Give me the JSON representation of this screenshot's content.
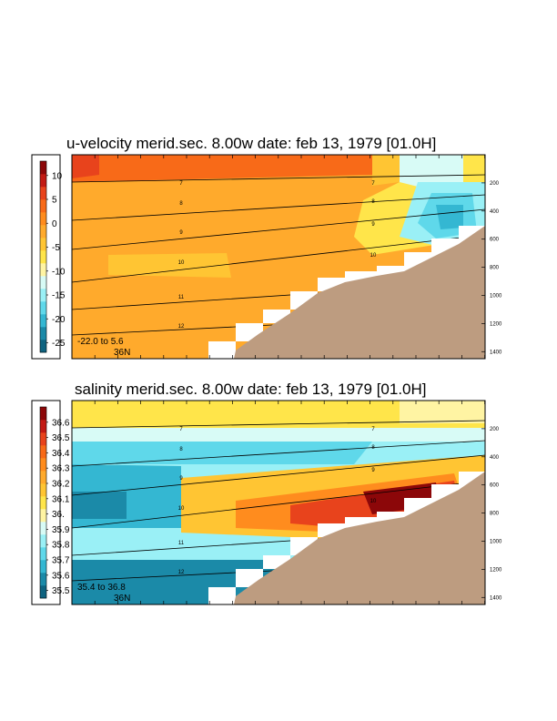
{
  "chart_data": [
    {
      "type": "heatmap",
      "title": "u-velocity merid.sec.  8.00w   date: feb 13, 1979   [01.0H]",
      "colorbar": {
        "ticks": [
          "10",
          "5",
          "0",
          "-5",
          "-10",
          "-15",
          "-20",
          "-25"
        ],
        "range": [
          -27,
          13
        ],
        "colors": [
          "#0e6380",
          "#1b8aa8",
          "#34b7d2",
          "#5fd8ea",
          "#9af0f6",
          "#d8fbf6",
          "#fff4a3",
          "#ffe54a",
          "#ffc533",
          "#ffaa2c",
          "#ff8c1e",
          "#f86a18",
          "#e8431c",
          "#c21a14",
          "#8c0709"
        ]
      },
      "depth_ticks": [
        "200",
        "400",
        "600",
        "800",
        "1000",
        "1200",
        "1400"
      ],
      "depth_range": [
        0,
        1450
      ],
      "contour_labels": [
        "7",
        "8",
        "9",
        "10",
        "11",
        "12",
        "7",
        "8",
        "9",
        "10"
      ],
      "annotation": {
        "range": "-22.0 to   5.6",
        "lat": "36N"
      }
    },
    {
      "type": "heatmap",
      "title": "salinity merid.sec.  8.00w   date: feb 13, 1979   [01.0H]",
      "colorbar": {
        "ticks": [
          "36.6",
          "36.5",
          "36.4",
          "36.3",
          "36.2",
          "36.1",
          "36.",
          "35.9",
          "35.8",
          "35.7",
          "35.6",
          "35.5"
        ],
        "range": [
          35.45,
          36.7
        ],
        "colors": [
          "#0e6380",
          "#1b8aa8",
          "#34b7d2",
          "#5fd8ea",
          "#9af0f6",
          "#d8fbf6",
          "#fff4a3",
          "#ffe54a",
          "#ffc533",
          "#ffaa2c",
          "#ff8c1e",
          "#f86a18",
          "#e8431c",
          "#c21a14",
          "#8c0709"
        ]
      },
      "depth_ticks": [
        "200",
        "400",
        "600",
        "800",
        "1000",
        "1200",
        "1400"
      ],
      "depth_range": [
        0,
        1450
      ],
      "contour_labels": [
        "7",
        "8",
        "9",
        "10",
        "11",
        "12",
        "7",
        "8",
        "9",
        "10"
      ],
      "annotation": {
        "range": "35.4 to  36.8",
        "lat": "36N"
      }
    }
  ]
}
